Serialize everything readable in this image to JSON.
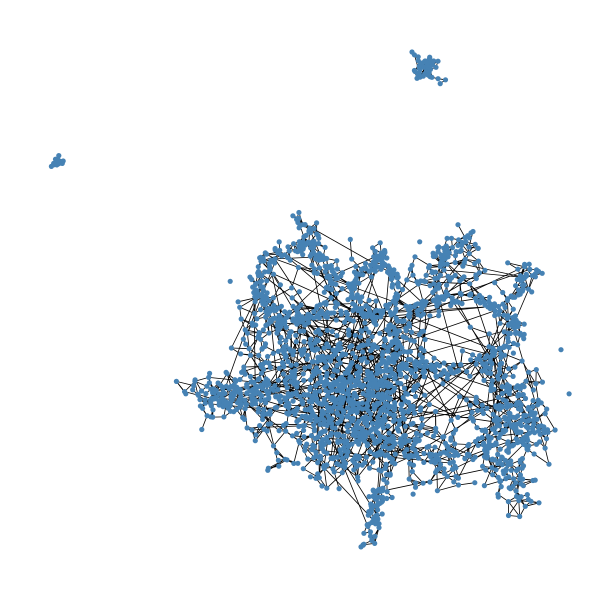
{
  "graph": {
    "node_color": "#4682b4",
    "edge_color": "#000000",
    "background_color": "#ffffff",
    "node_count_main_cluster": 1800,
    "components": [
      "main-cluster",
      "upper-right-cluster",
      "left-small-cluster"
    ],
    "lobes": [
      "upper-left-lobe",
      "upper-right-lobe",
      "left-tail-lobe",
      "center-core",
      "right-dense-lobe",
      "bottom-tail-lobe"
    ],
    "shape_seed": 20240601
  }
}
